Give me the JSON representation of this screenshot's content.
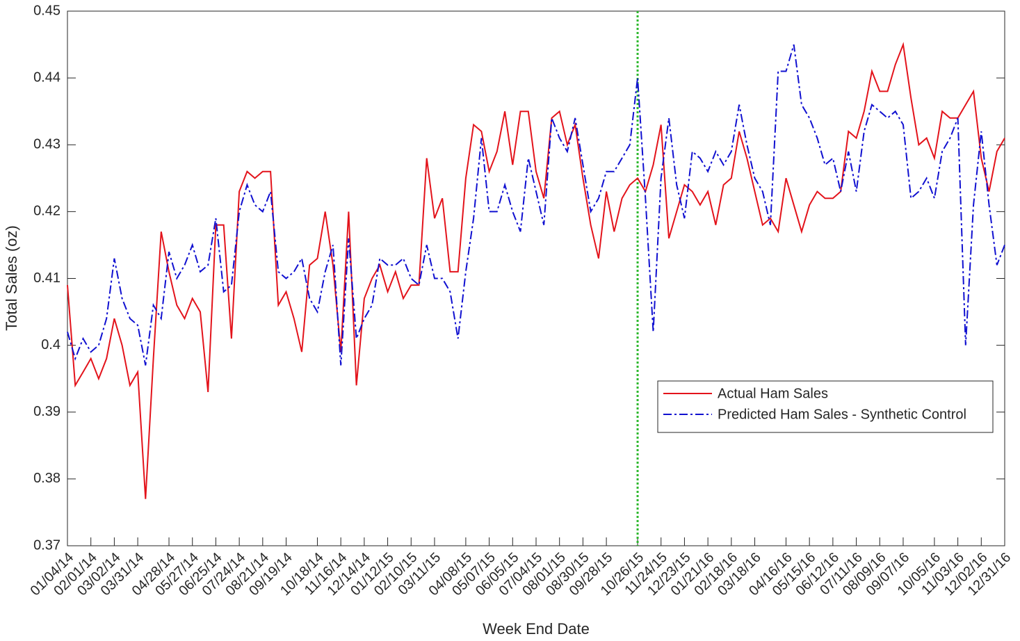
{
  "chart_data": {
    "type": "line",
    "xlabel": "Week End Date",
    "ylabel": "Total Sales (oz)",
    "categories": [
      "01/04/14",
      null,
      null,
      "02/01/14",
      null,
      null,
      "03/02/14",
      null,
      null,
      "03/31/14",
      null,
      null,
      null,
      "04/28/14",
      null,
      null,
      "05/27/14",
      null,
      null,
      "06/25/14",
      null,
      null,
      "07/24/14",
      null,
      null,
      "08/21/14",
      null,
      null,
      "09/19/14",
      null,
      null,
      null,
      "10/18/14",
      null,
      null,
      "11/16/14",
      null,
      null,
      "12/14/14",
      null,
      null,
      "01/12/15",
      null,
      null,
      "02/10/15",
      null,
      null,
      "03/11/15",
      null,
      null,
      null,
      "04/08/15",
      null,
      null,
      "05/07/15",
      null,
      null,
      "06/05/15",
      null,
      null,
      "07/04/15",
      null,
      null,
      "08/01/15",
      null,
      null,
      "08/30/15",
      null,
      null,
      "09/28/15",
      null,
      null,
      null,
      "10/26/15",
      null,
      null,
      "11/24/15",
      null,
      null,
      "12/23/15",
      null,
      null,
      "01/21/16",
      null,
      null,
      "02/18/16",
      null,
      null,
      "03/18/16",
      null,
      null,
      null,
      "04/16/16",
      null,
      null,
      "05/15/16",
      null,
      null,
      "06/12/16",
      null,
      null,
      "07/11/16",
      null,
      null,
      "08/09/16",
      null,
      null,
      "09/07/16",
      null,
      null,
      null,
      "10/05/16",
      null,
      null,
      "11/03/16",
      null,
      null,
      "12/02/16",
      null,
      null,
      "12/31/16"
    ],
    "series": [
      {
        "name": "Actual Ham Sales",
        "color": "#e3131b",
        "style": "solid",
        "values": [
          0.409,
          0.394,
          0.396,
          0.398,
          0.395,
          0.398,
          0.404,
          0.4,
          0.394,
          0.396,
          0.377,
          0.398,
          0.417,
          0.411,
          0.406,
          0.404,
          0.407,
          0.405,
          0.393,
          0.418,
          0.418,
          0.401,
          0.423,
          0.426,
          0.425,
          0.426,
          0.426,
          0.406,
          0.408,
          0.404,
          0.399,
          0.412,
          0.413,
          0.42,
          0.412,
          0.399,
          0.42,
          0.394,
          0.407,
          0.41,
          0.412,
          0.408,
          0.411,
          0.407,
          0.409,
          0.409,
          0.428,
          0.419,
          0.422,
          0.411,
          0.411,
          0.425,
          0.433,
          0.432,
          0.426,
          0.429,
          0.435,
          0.427,
          0.435,
          0.435,
          0.426,
          0.422,
          0.434,
          0.435,
          0.43,
          0.433,
          0.425,
          0.418,
          0.413,
          0.423,
          0.417,
          0.422,
          0.424,
          0.425,
          0.423,
          0.427,
          0.433,
          0.416,
          0.42,
          0.424,
          0.423,
          0.421,
          0.423,
          0.418,
          0.424,
          0.425,
          0.432,
          0.428,
          0.423,
          0.418,
          0.419,
          0.417,
          0.425,
          0.421,
          0.417,
          0.421,
          0.423,
          0.422,
          0.422,
          0.423,
          0.432,
          0.431,
          0.435,
          0.441,
          0.438,
          0.438,
          0.442,
          0.445,
          0.437,
          0.43,
          0.431,
          0.428,
          0.435,
          0.434,
          0.434,
          0.436,
          0.438,
          0.428,
          0.423,
          0.429,
          0.431
        ]
      },
      {
        "name": "Predicted Ham Sales - Synthetic Control",
        "color": "#1010d0",
        "style": "dashdot",
        "values": [
          0.402,
          0.398,
          0.401,
          0.399,
          0.4,
          0.404,
          0.413,
          0.407,
          0.404,
          0.403,
          0.397,
          0.406,
          0.404,
          0.414,
          0.41,
          0.412,
          0.415,
          0.411,
          0.412,
          0.419,
          0.408,
          0.409,
          0.42,
          0.424,
          0.421,
          0.42,
          0.423,
          0.411,
          0.41,
          0.411,
          0.413,
          0.407,
          0.405,
          0.411,
          0.415,
          0.397,
          0.416,
          0.401,
          0.404,
          0.406,
          0.413,
          0.412,
          0.412,
          0.413,
          0.41,
          0.409,
          0.415,
          0.41,
          0.41,
          0.408,
          0.401,
          0.411,
          0.419,
          0.431,
          0.42,
          0.42,
          0.424,
          0.42,
          0.417,
          0.428,
          0.423,
          0.418,
          0.434,
          0.431,
          0.429,
          0.434,
          0.427,
          0.42,
          0.422,
          0.426,
          0.426,
          0.428,
          0.43,
          0.44,
          0.422,
          0.402,
          0.425,
          0.434,
          0.424,
          0.419,
          0.429,
          0.428,
          0.426,
          0.429,
          0.427,
          0.429,
          0.436,
          0.43,
          0.425,
          0.423,
          0.418,
          0.441,
          0.441,
          0.445,
          0.436,
          0.434,
          0.431,
          0.427,
          0.428,
          0.423,
          0.429,
          0.423,
          0.432,
          0.436,
          0.435,
          0.434,
          0.435,
          0.433,
          0.422,
          0.423,
          0.425,
          0.422,
          0.429,
          0.431,
          0.434,
          0.4,
          0.421,
          0.432,
          0.421,
          0.412,
          0.415
        ]
      }
    ],
    "ylim": [
      0.37,
      0.45
    ],
    "yticks": [
      0.37,
      0.38,
      0.39,
      0.4,
      0.41,
      0.42,
      0.43,
      0.44,
      0.45
    ],
    "grid": false,
    "legend": "right",
    "vline": {
      "index": 73,
      "color": "#2db82d"
    }
  }
}
